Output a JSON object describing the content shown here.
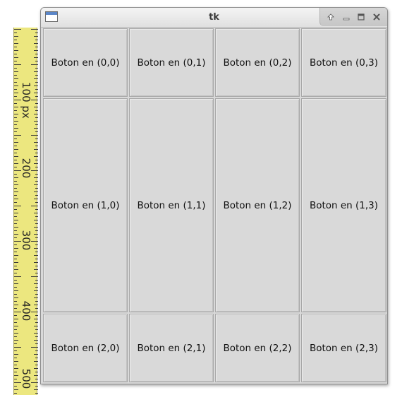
{
  "window": {
    "title": "tk",
    "controls": [
      {
        "name": "shade-button",
        "icon": "arrow-up-icon"
      },
      {
        "name": "minimize-button",
        "icon": "minimize-icon"
      },
      {
        "name": "maximize-button",
        "icon": "maximize-icon"
      },
      {
        "name": "close-button",
        "icon": "close-icon"
      }
    ]
  },
  "ruler": {
    "labels": [
      "100 px",
      "200",
      "300",
      "400",
      "500"
    ],
    "color": "#ece77f"
  },
  "grid": {
    "rows": [
      [
        "Boton en (0,0)",
        "Boton en (0,1)",
        "Boton en (0,2)",
        "Boton en (0,3)"
      ],
      [
        "Boton en (1,0)",
        "Boton en (1,1)",
        "Boton en (1,2)",
        "Boton en (1,3)"
      ],
      [
        "Boton en (2,0)",
        "Boton en (2,1)",
        "Boton en (2,2)",
        "Boton en (2,3)"
      ]
    ]
  }
}
